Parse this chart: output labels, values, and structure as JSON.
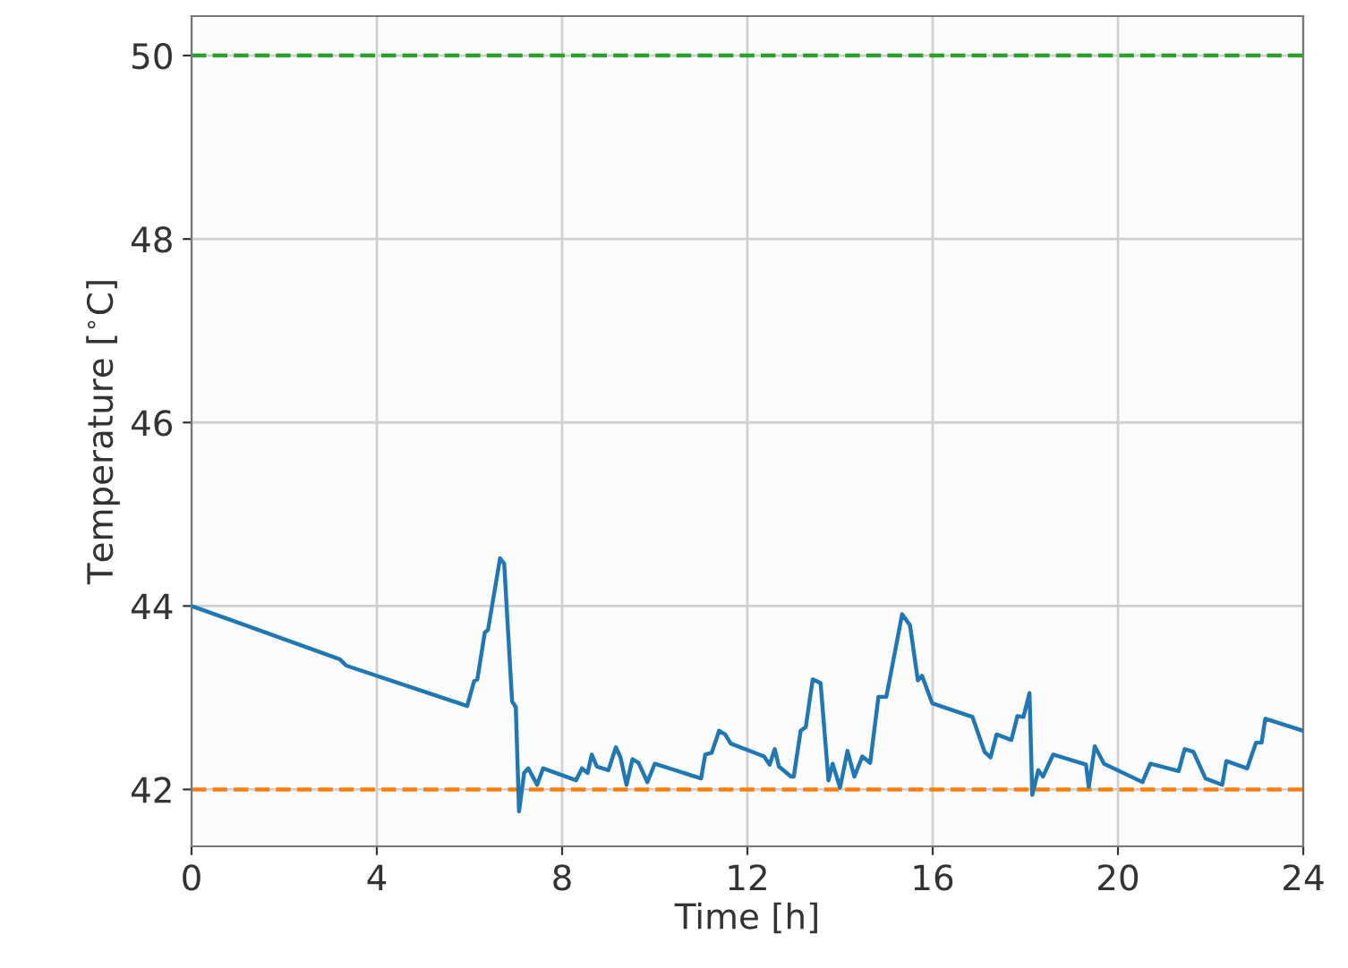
{
  "chart_data": {
    "type": "line",
    "xlabel": "Time [h]",
    "ylabel": "Temperature [$^{∘}$C]",
    "xlim": [
      0,
      24
    ],
    "ylim": [
      41.38,
      50.43
    ],
    "xticks": [
      0,
      4,
      8,
      12,
      16,
      20,
      24
    ],
    "yticks": [
      42,
      44,
      46,
      48,
      50
    ],
    "grid": true,
    "series": [
      {
        "color": "#1f77b4",
        "x": [
          0,
          3.2,
          3.34,
          5.95,
          6.1,
          6.17,
          6.33,
          6.4,
          6.66,
          6.75,
          6.92,
          7.0,
          7.07,
          7.18,
          7.27,
          7.46,
          7.59,
          8.3,
          8.43,
          8.55,
          8.64,
          8.75,
          9.0,
          9.16,
          9.26,
          9.39,
          9.52,
          9.65,
          9.84,
          10.0,
          11.0,
          11.09,
          11.23,
          11.39,
          11.52,
          11.64,
          12.36,
          12.48,
          12.59,
          12.68,
          12.94,
          13.0,
          13.15,
          13.26,
          13.41,
          13.58,
          13.75,
          13.84,
          14.0,
          14.16,
          14.31,
          14.48,
          14.65,
          14.83,
          15.0,
          15.34,
          15.51,
          15.68,
          15.77,
          15.99,
          16.86,
          17.12,
          17.25,
          17.38,
          17.7,
          17.83,
          17.96,
          18.09,
          18.15,
          18.28,
          18.38,
          18.6,
          19.31,
          19.37,
          19.5,
          19.7,
          20.53,
          20.7,
          21.31,
          21.44,
          21.63,
          21.89,
          22.25,
          22.34,
          22.79,
          22.98,
          23.1,
          23.18,
          24.0
        ],
        "values": [
          44.0,
          43.42,
          43.35,
          42.91,
          43.18,
          43.2,
          43.71,
          43.74,
          44.52,
          44.46,
          42.96,
          42.9,
          41.76,
          42.18,
          42.23,
          42.05,
          42.23,
          42.1,
          42.23,
          42.18,
          42.38,
          42.25,
          42.21,
          42.46,
          42.35,
          42.05,
          42.33,
          42.29,
          42.08,
          42.28,
          42.12,
          42.38,
          42.4,
          42.64,
          42.6,
          42.5,
          42.36,
          42.27,
          42.44,
          42.25,
          42.14,
          42.14,
          42.64,
          42.68,
          43.2,
          43.16,
          42.1,
          42.28,
          42.02,
          42.42,
          42.14,
          42.36,
          42.29,
          43.01,
          43.01,
          43.91,
          43.79,
          43.19,
          43.24,
          42.94,
          42.79,
          42.41,
          42.35,
          42.6,
          42.54,
          42.8,
          42.79,
          43.05,
          41.94,
          42.21,
          42.14,
          42.38,
          42.27,
          42.03,
          42.47,
          42.28,
          42.08,
          42.28,
          42.2,
          42.44,
          42.41,
          42.12,
          42.05,
          42.31,
          42.23,
          42.51,
          42.51,
          42.77,
          42.64
        ]
      }
    ],
    "ref_lines": [
      {
        "axis": "y",
        "value": 50,
        "label": null,
        "color": "#2ca02c",
        "line_style": "dashed"
      },
      {
        "axis": "y",
        "value": 42,
        "label": null,
        "color": "#ff7f0e",
        "line_style": "dashed"
      }
    ]
  }
}
